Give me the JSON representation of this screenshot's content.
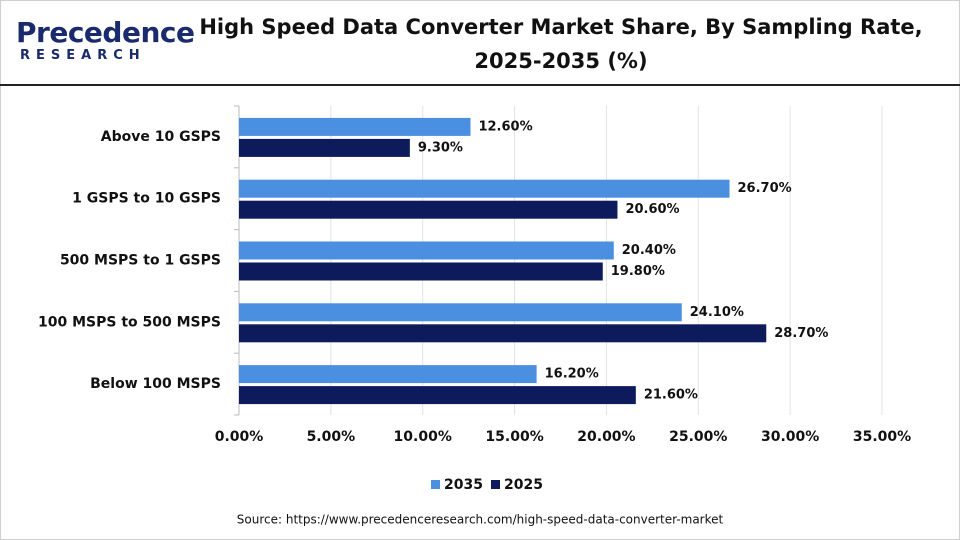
{
  "logo": {
    "name": "Precedence",
    "tagline": "RESEARCH"
  },
  "chart_data": {
    "type": "hbar",
    "title": "High Speed Data Converter Market Share, By Sampling Rate, 2025-2035 (%)",
    "source": "Source: https://www.precedenceresearch.com/high-speed-data-converter-market",
    "categories": [
      "Above 10 GSPS",
      "1 GSPS to 10 GSPS",
      "500 MSPS to 1 GSPS",
      "100 MSPS to 500 MSPS",
      "Below 100 MSPS"
    ],
    "series": [
      {
        "name": "2035",
        "color": "#4a8fe0",
        "values": [
          12.6,
          26.7,
          20.4,
          24.1,
          16.2
        ],
        "value_labels": [
          "12.60%",
          "26.70%",
          "20.40%",
          "24.10%",
          "16.20%"
        ]
      },
      {
        "name": "2025",
        "color": "#0d1a5c",
        "values": [
          9.3,
          20.6,
          19.8,
          28.7,
          21.6
        ],
        "value_labels": [
          "9.30%",
          "20.60%",
          "19.80%",
          "28.70%",
          "21.60%"
        ]
      }
    ],
    "xlim": [
      0,
      35
    ],
    "xticks": [
      {
        "value": 0,
        "label": "0.00%"
      },
      {
        "value": 5,
        "label": "5.00%"
      },
      {
        "value": 10,
        "label": "10.00%"
      },
      {
        "value": 15,
        "label": "15.00%"
      },
      {
        "value": 20,
        "label": "20.00%"
      },
      {
        "value": 25,
        "label": "25.00%"
      },
      {
        "value": 30,
        "label": "30.00%"
      },
      {
        "value": 35,
        "label": "35.00%"
      }
    ],
    "grid": true,
    "legend": "bottom"
  }
}
